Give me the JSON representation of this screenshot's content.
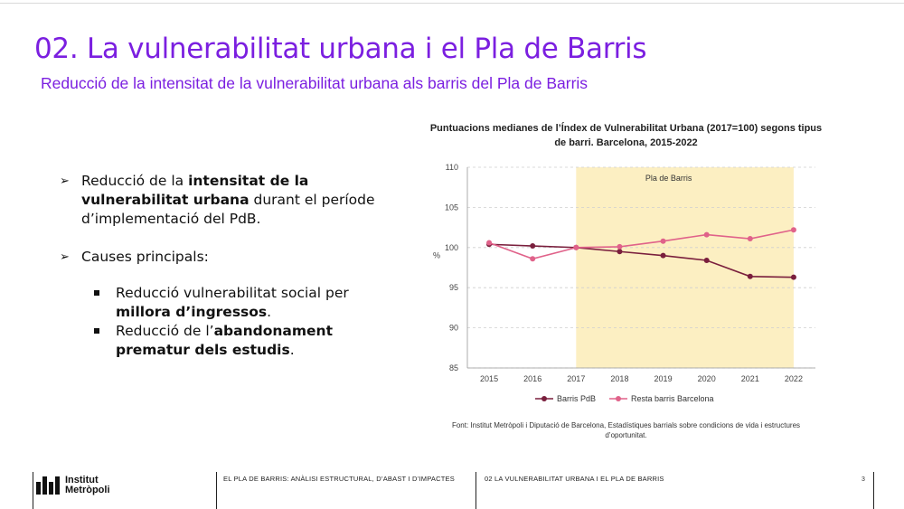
{
  "header": {
    "title": "02. La vulnerabilitat urbana i el Pla de Barris",
    "subtitle": "Reducció de la intensitat de la vulnerabilitat urbana als barris del Pla de Barris"
  },
  "bullets": {
    "b1_pre": "Reducció de la ",
    "b1_bold": "intensitat de la vulnerabilitat urbana",
    "b1_post": " durant el període d’implementació del PdB.",
    "b2": "Causes principals:",
    "sub1_pre": "Reducció vulnerabilitat social per ",
    "sub1_bold": "millora d’ingressos",
    "sub1_post": ".",
    "sub2_pre": "Reducció de l’",
    "sub2_bold": "abandonament prematur dels estudis",
    "sub2_post": "."
  },
  "chart_data": {
    "type": "line",
    "title": "Puntuacions medianes de l’Índex de Vulnerabilitat Urbana (2017=100) segons tipus de barri. Barcelona, 2015-2022",
    "ylabel": "%",
    "ylim": [
      85,
      110
    ],
    "yticks": [
      85,
      90,
      95,
      100,
      105,
      110
    ],
    "categories": [
      "2015",
      "2016",
      "2017",
      "2018",
      "2019",
      "2020",
      "2021",
      "2022"
    ],
    "shaded_region": {
      "from": "2017",
      "to": "2022",
      "label": "Pla de Barris"
    },
    "series": [
      {
        "name": "Barris PdB",
        "color": "#7a1f3d",
        "values": [
          100.4,
          100.2,
          100.0,
          99.5,
          99.0,
          98.4,
          96.4,
          96.3
        ]
      },
      {
        "name": "Resta barris Barcelona",
        "color": "#e0628a",
        "values": [
          100.6,
          98.6,
          100.0,
          100.1,
          100.8,
          101.6,
          101.1,
          102.2
        ]
      }
    ],
    "shade_color": "#fcefc2",
    "grid": true,
    "legend": "bottom"
  },
  "source": "Font: Institut Metròpoli i Diputació de Barcelona, Estadístiques barrials sobre condicions de vida i estructures d’oportunitat.",
  "footer": {
    "logo_line1": "Institut",
    "logo_line2": "Metròpoli",
    "section1": "EL PLA DE BARRIS: ANÀLISI ESTRUCTURAL, D’ABAST I D’IMPACTES",
    "section2": "02 LA VULNERABILITAT URBANA I EL PLA DE BARRIS",
    "page": "3"
  }
}
